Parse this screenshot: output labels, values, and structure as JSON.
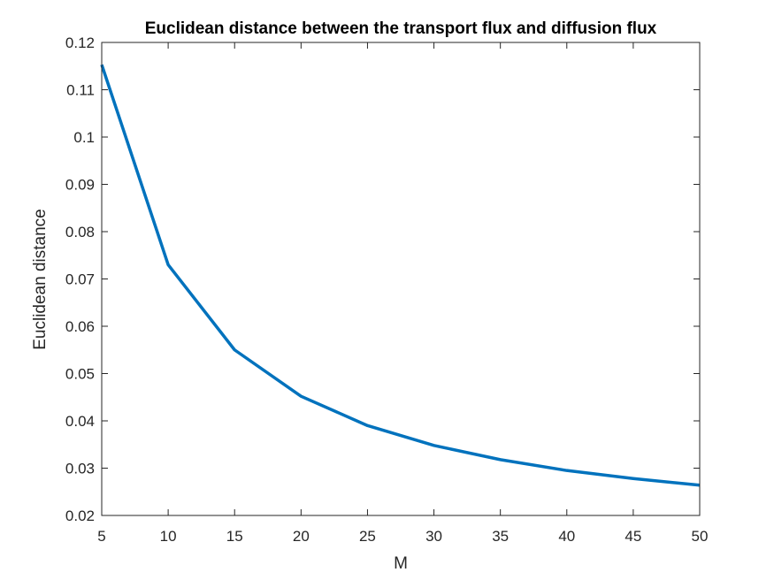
{
  "chart_data": {
    "type": "line",
    "title": "Euclidean distance between the transport flux and diffusion flux",
    "xlabel": "M",
    "ylabel": "Euclidean distance",
    "xlim": [
      5,
      50
    ],
    "ylim": [
      0.02,
      0.12
    ],
    "xticks": [
      "5",
      "10",
      "15",
      "20",
      "25",
      "30",
      "35",
      "40",
      "45",
      "50"
    ],
    "yticks": [
      "0.02",
      "0.03",
      "0.04",
      "0.05",
      "0.06",
      "0.07",
      "0.08",
      "0.09",
      "0.1",
      "0.11",
      "0.12"
    ],
    "grid": false,
    "series": [
      {
        "x": [
          5,
          10,
          15,
          20,
          25,
          30,
          35,
          40,
          45,
          50
        ],
        "values": [
          0.1153,
          0.073,
          0.055,
          0.0452,
          0.039,
          0.0348,
          0.0318,
          0.0295,
          0.0278,
          0.0264
        ],
        "color": "#0072BD"
      }
    ]
  }
}
